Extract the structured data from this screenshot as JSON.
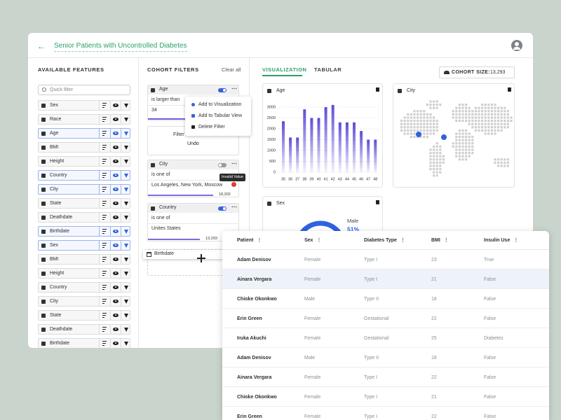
{
  "header": {
    "title": "Senior Patients with Uncontrolled Diabetes"
  },
  "features": {
    "title": "AVAILABLE FEATURES",
    "search_placeholder": "Quick filter",
    "items": [
      {
        "name": "Sex",
        "active": false
      },
      {
        "name": "Race",
        "active": false
      },
      {
        "name": "Age",
        "active": true
      },
      {
        "name": "BMI",
        "active": false
      },
      {
        "name": "Height",
        "active": false
      },
      {
        "name": "Country",
        "active": true
      },
      {
        "name": "City",
        "active": true
      },
      {
        "name": "State",
        "active": false
      },
      {
        "name": "Deathdate",
        "active": false
      },
      {
        "name": "Birthdate",
        "active": true
      },
      {
        "name": "Sex",
        "active": true
      },
      {
        "name": "BMI",
        "active": false
      },
      {
        "name": "Height",
        "active": false
      },
      {
        "name": "Country",
        "active": false
      },
      {
        "name": "City",
        "active": false
      },
      {
        "name": "State",
        "active": false
      },
      {
        "name": "Deathdate",
        "active": false
      },
      {
        "name": "Birthdate",
        "active": false
      }
    ]
  },
  "cohort_filters": {
    "title": "COHORT FILTERS",
    "clear": "Clear all",
    "filters": [
      {
        "name": "Age",
        "operator": "is larger than",
        "value": "34",
        "enabled": true
      },
      {
        "name": "City",
        "operator": "is one of",
        "value": "Los Angeles, New York, Moscow",
        "count": "18,302",
        "enabled": false
      },
      {
        "name": "Country",
        "operator": "is one of",
        "value": "Unites States",
        "count": "13,293",
        "enabled": true
      }
    ],
    "menu": [
      "Add to Visualization",
      "Add to Tabular View",
      "Delete Filter"
    ],
    "undo": {
      "message": "Filter",
      "action": "Undo"
    },
    "tooltip": "Invalid Value",
    "dragging": "Birthdate"
  },
  "tabs": [
    "VISUALIZATION",
    "TABULAR"
  ],
  "cohort_size": {
    "label": "COHORT SIZE:",
    "value": "13,293"
  },
  "map": {
    "title": "City"
  },
  "chart_data": [
    {
      "type": "bar",
      "title": "Age",
      "categories": [
        35,
        36,
        37,
        38,
        39,
        40,
        41,
        42,
        43,
        44,
        45,
        46,
        47,
        48
      ],
      "values": [
        2350,
        1600,
        1600,
        2900,
        2500,
        2500,
        3000,
        3100,
        2300,
        2300,
        2300,
        1900,
        1500,
        1500
      ],
      "color": "#5a4bd6",
      "ylim": [
        0,
        3200
      ],
      "yticks": [
        0,
        500,
        1000,
        1500,
        2000,
        2500,
        3000
      ],
      "grid": true
    },
    {
      "type": "donut",
      "title": "Sex",
      "categories": [
        "Male"
      ],
      "values": [
        51
      ],
      "value_labels": [
        "51%"
      ],
      "color": "#2f62e0"
    }
  ],
  "table": {
    "columns": [
      "Patient",
      "Sex",
      "Diabetes Type",
      "BMI",
      "Insulin Use"
    ],
    "rows": [
      [
        "Adam Denisov",
        "Female",
        "Type I",
        23,
        "True"
      ],
      [
        "Ainara Vergara",
        "Female",
        "Type I",
        21,
        "False"
      ],
      [
        "Chioke Okonkwo",
        "Male",
        "Type II",
        18,
        "False"
      ],
      [
        "Erin Green",
        "Female",
        "Gestational",
        22,
        "False"
      ],
      [
        "Iruka Akuchi",
        "Female",
        "Gestational",
        25,
        "Diabetes"
      ],
      [
        "Adam Denisov",
        "Male",
        "Type II",
        18,
        "False"
      ],
      [
        "Ainara Vergara",
        "Female",
        "Type I",
        22,
        "False"
      ],
      [
        "Chioke Okonkwo",
        "Female",
        "Type I",
        21,
        "False"
      ],
      [
        "Erin Green",
        "Female",
        "Type I",
        22,
        "False"
      ]
    ]
  }
}
